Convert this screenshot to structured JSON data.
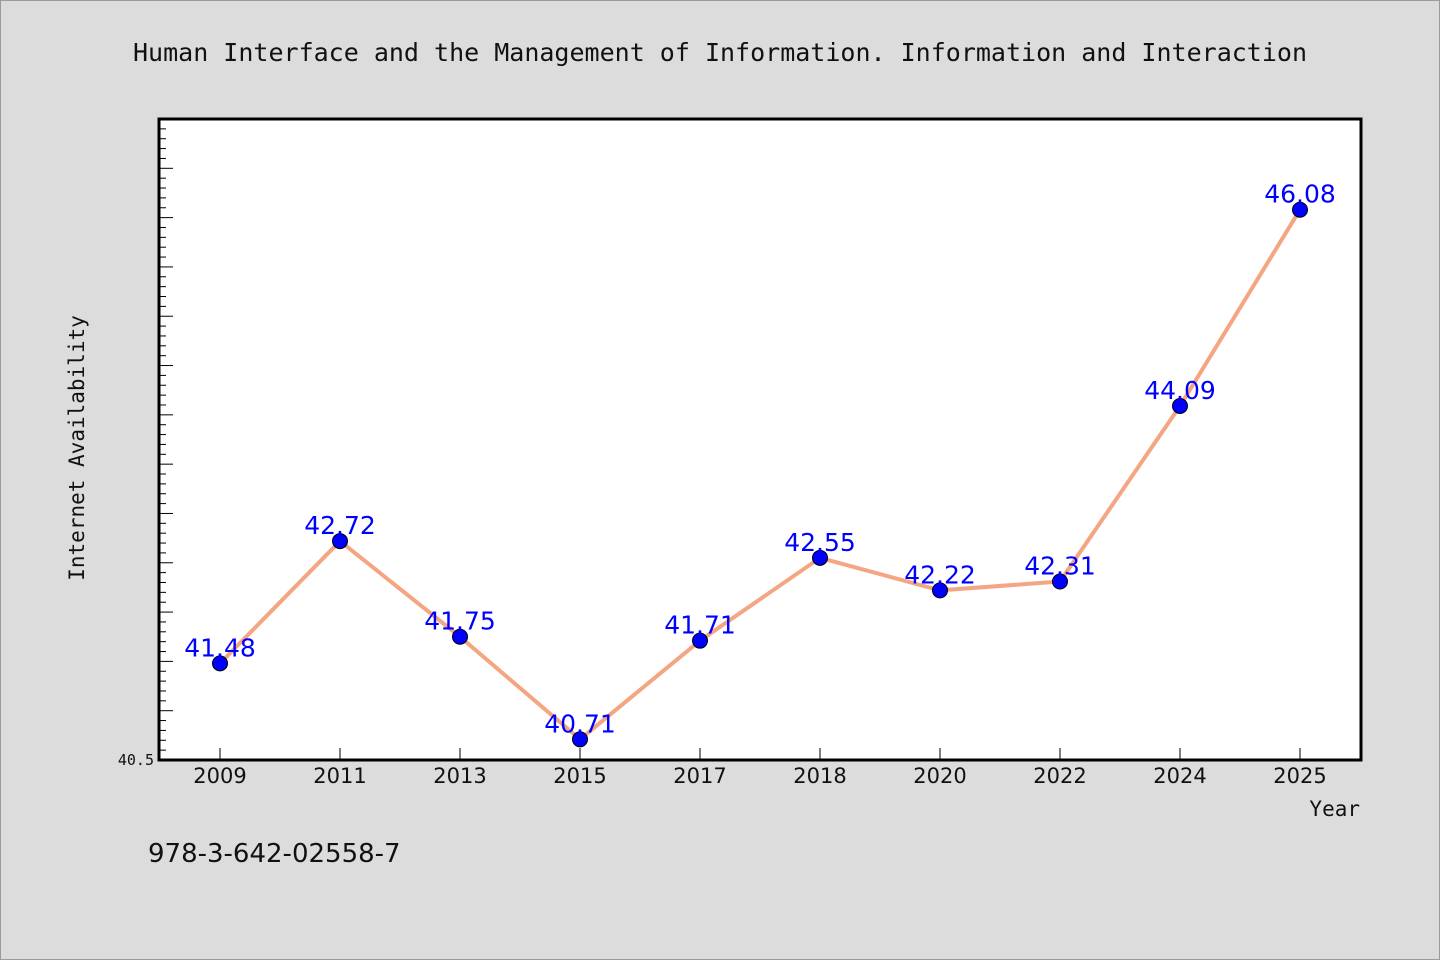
{
  "chart_data": {
    "type": "line",
    "title": "Human Interface and the Management of Information. Information and Interaction",
    "xlabel": "Year",
    "ylabel": "Internet Availability",
    "categories": [
      "2009",
      "2011",
      "2013",
      "2015",
      "2017",
      "2018",
      "2020",
      "2022",
      "2024",
      "2025"
    ],
    "series": [
      {
        "values": [
          41.48,
          42.72,
          41.75,
          40.71,
          41.71,
          42.55,
          42.22,
          42.31,
          44.09,
          46.08
        ],
        "labels": [
          "41.48",
          "42.72",
          "41.75",
          "40.71",
          "41.71",
          "42.55",
          "42.22",
          "42.31",
          "44.09",
          "46.08"
        ]
      }
    ],
    "ylim": [
      40.5,
      47.0
    ],
    "yticks_labeled": [
      "40.5"
    ],
    "yminor_step": 0.1,
    "ymajor_step": 0.5,
    "grid": false,
    "line_color": "#f4a582",
    "marker_color": "#0000ff",
    "label_color": "#0000ff",
    "background": "#dcdcdc",
    "plot_background": "#ffffff"
  },
  "footer": {
    "isbn": "978-3-642-02558-7"
  }
}
